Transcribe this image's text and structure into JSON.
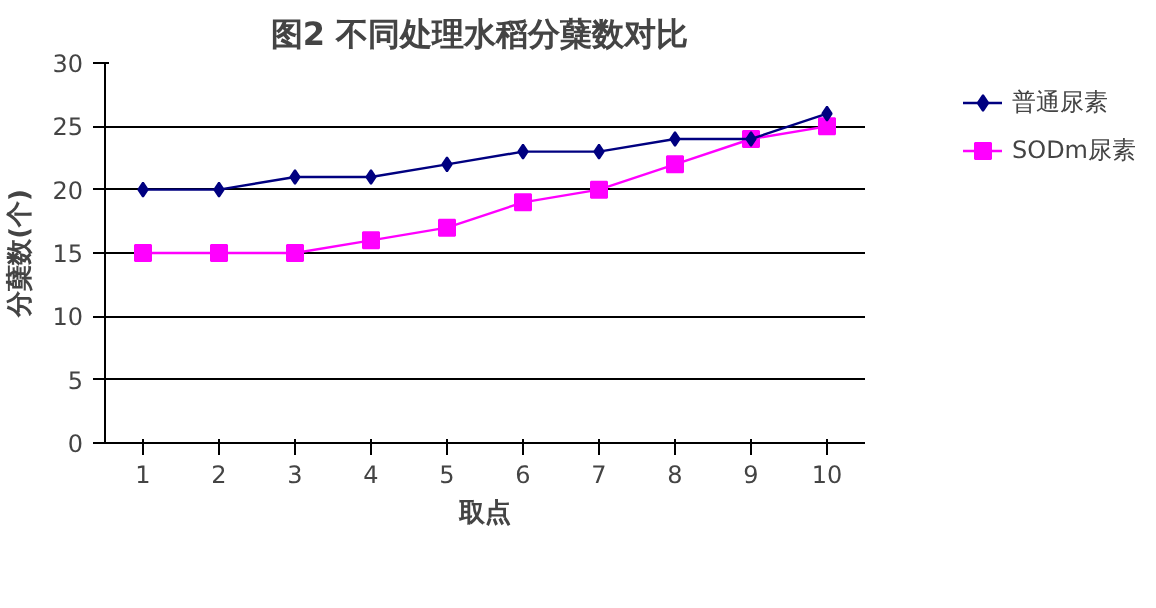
{
  "chart_data": {
    "type": "line",
    "title": "图2  不同处理水稻分蘖数对比",
    "xlabel": "取点",
    "ylabel": "分蘖数(个)",
    "categories": [
      "1",
      "2",
      "3",
      "4",
      "5",
      "6",
      "7",
      "8",
      "9",
      "10"
    ],
    "series": [
      {
        "name": "普通尿素",
        "color": "#000080",
        "marker": "diamond",
        "values": [
          20,
          20,
          21,
          21,
          22,
          23,
          23,
          24,
          24,
          26
        ]
      },
      {
        "name": "SODm尿素",
        "color": "#ff00ff",
        "marker": "square",
        "values": [
          15,
          15,
          15,
          16,
          17,
          19,
          20,
          22,
          24,
          25
        ]
      }
    ],
    "ylim": [
      0,
      30
    ],
    "yticks": [
      0,
      5,
      10,
      15,
      20,
      25,
      30
    ],
    "grid": "y",
    "legend": "right"
  }
}
